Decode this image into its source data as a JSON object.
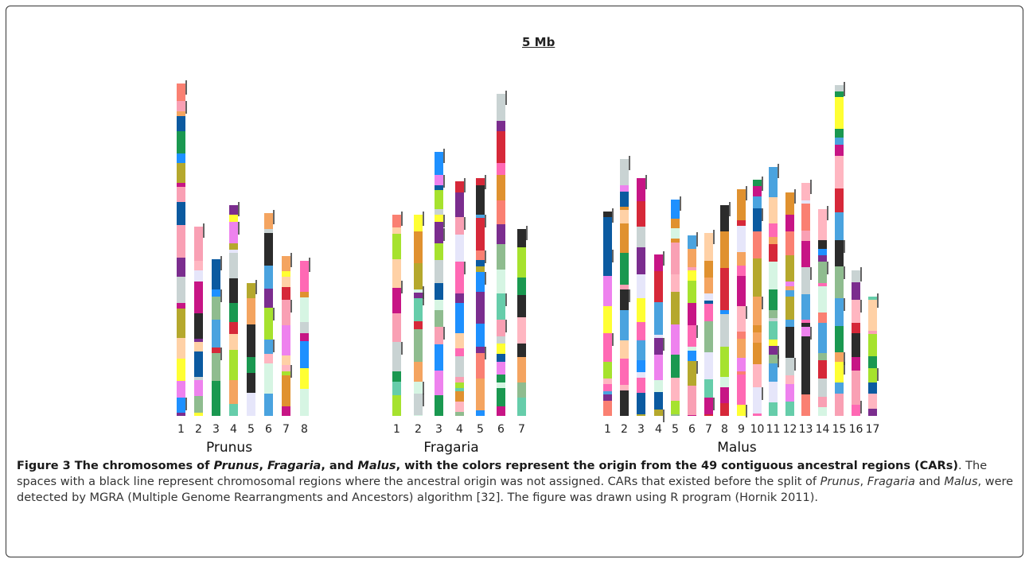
{
  "figure": {
    "scale_label": "5 Mb",
    "groups": [
      {
        "name": "Prunus",
        "chromosomes": [
          "1",
          "2",
          "3",
          "4",
          "5",
          "6",
          "7",
          "8"
        ]
      },
      {
        "name": "Fragaria",
        "chromosomes": [
          "1",
          "2",
          "3",
          "4",
          "5",
          "6",
          "7"
        ]
      },
      {
        "name": "Malus",
        "chromosomes": [
          "1",
          "2",
          "3",
          "4",
          "5",
          "6",
          "7",
          "8",
          "9",
          "10",
          "11",
          "12",
          "13",
          "14",
          "15",
          "16",
          "17"
        ]
      }
    ]
  },
  "caption": {
    "label": "Figure 3",
    "t1": "The chromosomes of ",
    "i1": "Prunus",
    "t2": ", ",
    "i2": "Fragaria",
    "t3": ", and ",
    "i3": "Malus",
    "t4": ", with the colors represent the origin from the 49 contiguous ancestral regions (CARs)",
    "t5": ". The spaces with a black line represent chromosomal regions where the ancestral origin was not assigned. CARs that existed before the split of ",
    "i4": "Prunus",
    "t6": ", ",
    "i5": "Fragaria",
    "t7": " and ",
    "i6": "Malus",
    "t8": ", were detected by MGRA (Multiple Genome Rearrangments and Ancestors) algorithm [32]. The figure was drawn using R program (Hornik 2011)."
  }
}
